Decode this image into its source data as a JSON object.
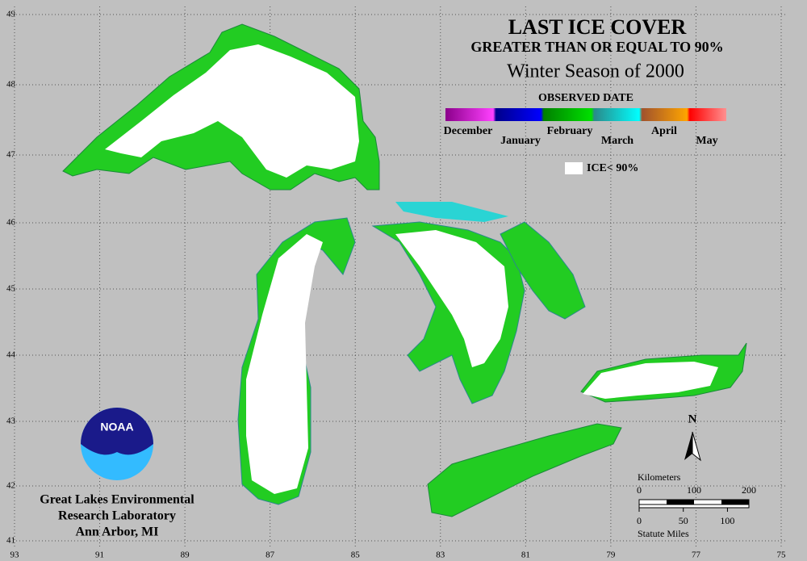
{
  "header": {
    "title": "LAST ICE COVER",
    "subtitle": "GREATER THAN OR EQUAL TO 90%",
    "season": "Winter Season of 2000"
  },
  "legend": {
    "title": "OBSERVED DATE",
    "months": [
      "December",
      "January",
      "February",
      "March",
      "April",
      "May"
    ],
    "white_label": "ICE< 90%"
  },
  "latitudes": [
    49,
    48,
    47,
    46,
    45,
    44,
    43,
    42,
    41
  ],
  "longitudes": [
    93,
    91,
    89,
    87,
    85,
    83,
    81,
    79,
    77,
    75
  ],
  "scale": {
    "km_title": "Kilometers",
    "km_ticks": [
      0,
      100,
      200
    ],
    "mi_ticks": [
      0,
      50,
      100
    ],
    "mi_title": "Statute Miles"
  },
  "north": "N",
  "logo": "NOAA",
  "lab": [
    "Great Lakes Environmental",
    "Research Laboratory",
    "Ann Arbor, MI"
  ]
}
